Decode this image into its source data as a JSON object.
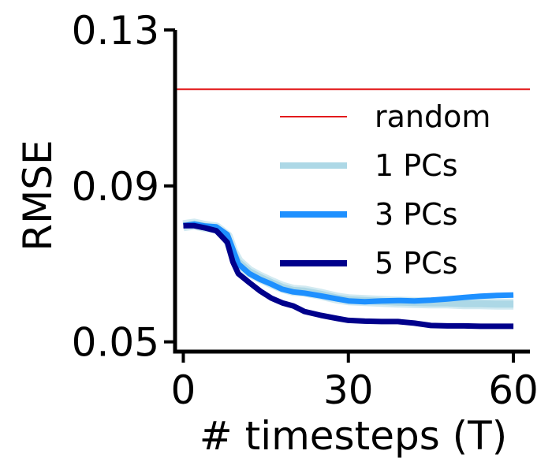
{
  "chart_data": {
    "type": "line",
    "title": "",
    "xlabel": "# timesteps (T)",
    "ylabel": "RMSE",
    "xlim": [
      -1.5,
      63
    ],
    "ylim": [
      0.0475,
      0.13
    ],
    "xticks": [
      0,
      30,
      60
    ],
    "xtick_labels": [
      "0",
      "30",
      "60"
    ],
    "yticks": [
      0.05,
      0.09,
      0.13
    ],
    "ytick_labels": [
      "0.05",
      "0.09",
      "0.13"
    ],
    "grid": false,
    "legend_position": "right",
    "series": [
      {
        "name": "random",
        "color": "#e31a1c",
        "style": "thin",
        "x": [
          -1.5,
          63
        ],
        "y": [
          0.1148,
          0.1148
        ]
      },
      {
        "name": "1 PCs",
        "color": "#add8e6",
        "style": "band",
        "x": [
          0,
          2,
          4,
          6,
          8,
          9,
          10,
          12,
          14,
          16,
          18,
          20,
          22,
          25,
          28,
          30,
          33,
          36,
          39,
          42,
          45,
          48,
          51,
          54,
          57,
          60
        ],
        "y": [
          0.0798,
          0.0802,
          0.0796,
          0.0792,
          0.077,
          0.073,
          0.0705,
          0.068,
          0.0665,
          0.0652,
          0.064,
          0.0632,
          0.063,
          0.0622,
          0.0612,
          0.0608,
          0.0606,
          0.0604,
          0.0602,
          0.0601,
          0.06,
          0.06,
          0.0598,
          0.0598,
          0.0597,
          0.0597
        ]
      },
      {
        "name": "3 PCs",
        "color": "#1e90ff",
        "style": "thick",
        "x": [
          0,
          2,
          4,
          6,
          8,
          9,
          10,
          12,
          14,
          16,
          18,
          20,
          22,
          25,
          28,
          30,
          33,
          36,
          39,
          42,
          45,
          48,
          51,
          54,
          57,
          60
        ],
        "y": [
          0.0798,
          0.0802,
          0.0797,
          0.0795,
          0.0775,
          0.0738,
          0.07,
          0.0675,
          0.066,
          0.0648,
          0.0635,
          0.0628,
          0.0625,
          0.0618,
          0.061,
          0.0605,
          0.0603,
          0.0605,
          0.0606,
          0.0605,
          0.0607,
          0.061,
          0.0614,
          0.0617,
          0.0619,
          0.062
        ]
      },
      {
        "name": "5 PCs",
        "color": "#00008b",
        "style": "thick",
        "x": [
          0,
          2,
          4,
          6,
          8,
          9,
          10,
          12,
          14,
          16,
          18,
          20,
          22,
          25,
          28,
          30,
          33,
          36,
          39,
          42,
          45,
          48,
          51,
          54,
          57,
          60
        ],
        "y": [
          0.0798,
          0.0798,
          0.0792,
          0.0785,
          0.0755,
          0.0705,
          0.0675,
          0.0652,
          0.063,
          0.0612,
          0.06,
          0.0592,
          0.0578,
          0.0568,
          0.056,
          0.0555,
          0.0553,
          0.0552,
          0.0552,
          0.0548,
          0.0542,
          0.0541,
          0.0541,
          0.054,
          0.054,
          0.054
        ]
      }
    ]
  }
}
